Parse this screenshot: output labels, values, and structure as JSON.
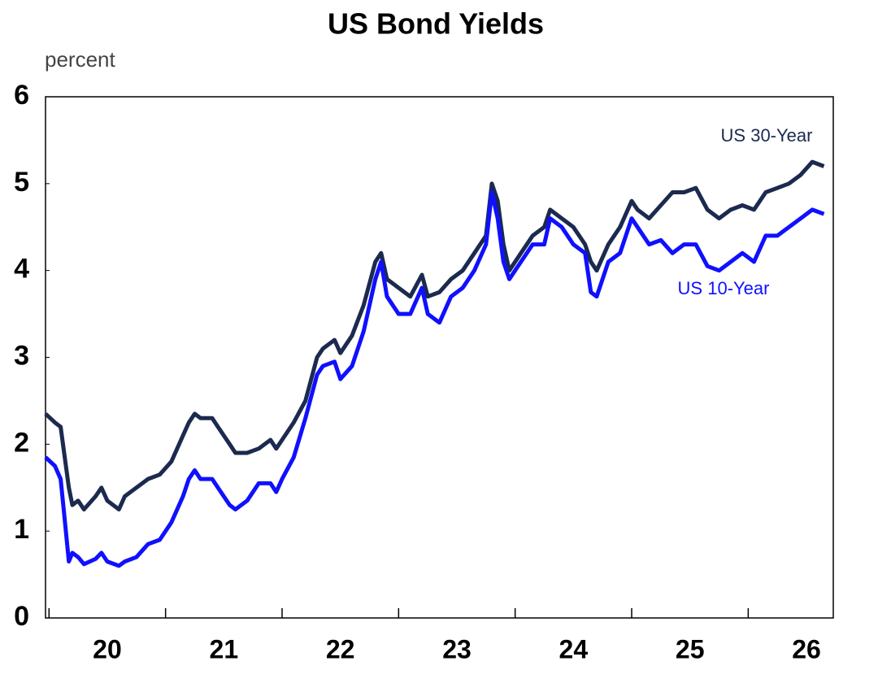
{
  "chart_data": {
    "type": "line",
    "title": "US Bond Yields",
    "y_label": "percent",
    "x": [
      19.97,
      20.05,
      20.1,
      20.13,
      20.17,
      20.2,
      20.25,
      20.3,
      20.4,
      20.45,
      20.5,
      20.6,
      20.65,
      20.75,
      20.85,
      20.95,
      21.05,
      21.15,
      21.2,
      21.25,
      21.3,
      21.4,
      21.45,
      21.55,
      21.6,
      21.7,
      21.8,
      21.9,
      21.95,
      22.0,
      22.1,
      22.2,
      22.3,
      22.35,
      22.45,
      22.5,
      22.6,
      22.7,
      22.8,
      22.85,
      22.9,
      23.0,
      23.1,
      23.2,
      23.25,
      23.35,
      23.45,
      23.55,
      23.65,
      23.75,
      23.8,
      23.85,
      23.9,
      23.95,
      24.05,
      24.15,
      24.25,
      24.3,
      24.4,
      24.5,
      24.6,
      24.65,
      24.7,
      24.8,
      24.9,
      25.0,
      25.05,
      25.15,
      25.25,
      25.35,
      25.45,
      25.55,
      25.65,
      25.75,
      25.85,
      25.95,
      26.05,
      26.15,
      26.25,
      26.35,
      26.45,
      26.55,
      26.65
    ],
    "series": [
      {
        "name": "US 30-Year",
        "color": "#1b2a4e",
        "values": [
          2.35,
          2.25,
          2.2,
          1.9,
          1.5,
          1.3,
          1.35,
          1.25,
          1.4,
          1.5,
          1.35,
          1.25,
          1.4,
          1.5,
          1.6,
          1.65,
          1.8,
          2.1,
          2.25,
          2.35,
          2.3,
          2.3,
          2.2,
          2.0,
          1.9,
          1.9,
          1.95,
          2.05,
          1.95,
          2.05,
          2.25,
          2.5,
          3.0,
          3.1,
          3.2,
          3.05,
          3.25,
          3.6,
          4.1,
          4.2,
          3.9,
          3.8,
          3.7,
          3.95,
          3.7,
          3.75,
          3.9,
          4.0,
          4.2,
          4.4,
          5.0,
          4.8,
          4.3,
          4.0,
          4.2,
          4.4,
          4.5,
          4.7,
          4.6,
          4.5,
          4.3,
          4.1,
          4.0,
          4.3,
          4.5,
          4.8,
          4.7,
          4.6,
          4.75,
          4.9,
          4.9,
          4.95,
          4.7,
          4.6,
          4.7,
          4.75,
          4.7,
          4.9,
          4.95,
          5.0,
          5.1,
          5.25,
          5.2
        ]
      },
      {
        "name": "US 10-Year",
        "color": "#1010ff",
        "values": [
          1.85,
          1.75,
          1.6,
          1.2,
          0.65,
          0.75,
          0.7,
          0.62,
          0.68,
          0.75,
          0.65,
          0.6,
          0.65,
          0.7,
          0.85,
          0.9,
          1.1,
          1.4,
          1.6,
          1.7,
          1.6,
          1.6,
          1.5,
          1.3,
          1.25,
          1.35,
          1.55,
          1.55,
          1.45,
          1.6,
          1.85,
          2.3,
          2.8,
          2.9,
          2.95,
          2.75,
          2.9,
          3.3,
          3.9,
          4.1,
          3.7,
          3.5,
          3.5,
          3.8,
          3.5,
          3.4,
          3.7,
          3.8,
          4.0,
          4.3,
          4.9,
          4.6,
          4.1,
          3.9,
          4.1,
          4.3,
          4.3,
          4.6,
          4.5,
          4.3,
          4.2,
          3.75,
          3.7,
          4.1,
          4.2,
          4.6,
          4.5,
          4.3,
          4.35,
          4.2,
          4.3,
          4.3,
          4.05,
          4.0,
          4.1,
          4.2,
          4.1,
          4.4,
          4.4,
          4.5,
          4.6,
          4.7,
          4.65
        ]
      }
    ],
    "xlim": [
      19.97,
      26.73
    ],
    "ylim": [
      0,
      6
    ],
    "yticks": [
      0,
      1,
      2,
      3,
      4,
      5,
      6
    ],
    "xtick_marks": [
      20,
      21,
      22,
      23,
      24,
      25,
      26
    ],
    "xticks": [
      {
        "value": 20.5,
        "label": "20"
      },
      {
        "value": 21.5,
        "label": "21"
      },
      {
        "value": 22.5,
        "label": "22"
      },
      {
        "value": 23.5,
        "label": "23"
      },
      {
        "value": 24.5,
        "label": "24"
      },
      {
        "value": 25.5,
        "label": "25"
      },
      {
        "value": 26.5,
        "label": "26"
      }
    ]
  }
}
